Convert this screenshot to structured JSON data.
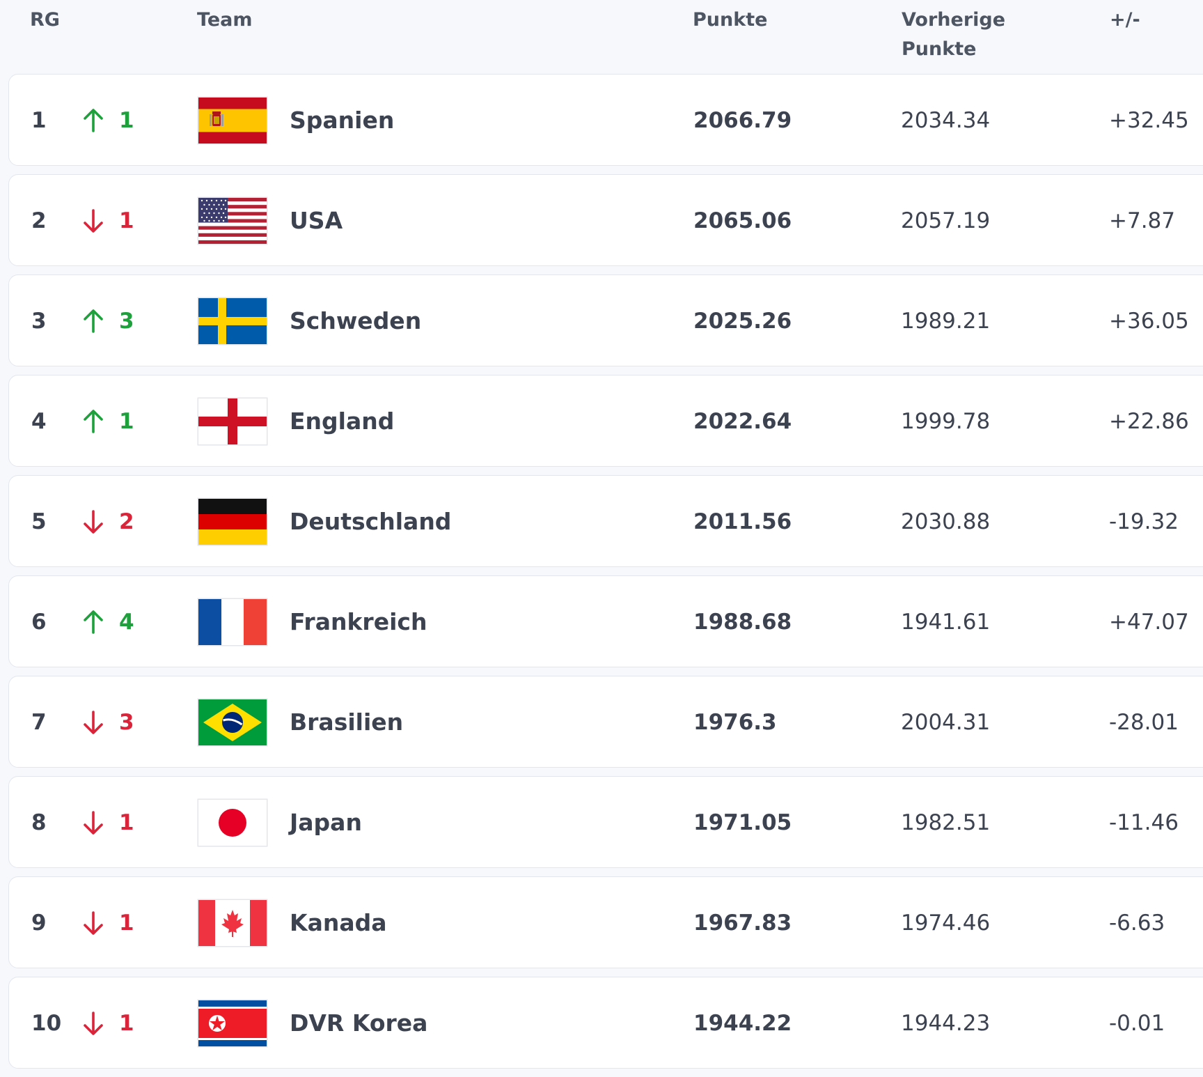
{
  "header": {
    "rank": "RG",
    "team": "Team",
    "points": "Punkte",
    "previous_line1": "Vorherige",
    "previous_line2": "Punkte",
    "diff": "+/-"
  },
  "colors": {
    "up": "#1ea03c",
    "down": "#d9243a"
  },
  "rows": [
    {
      "rank": "1",
      "dir": "up",
      "change": "1",
      "flag": "spain-flag-icon",
      "team": "Spanien",
      "points": "2066.79",
      "previous": "2034.34",
      "diff": "+32.45"
    },
    {
      "rank": "2",
      "dir": "down",
      "change": "1",
      "flag": "usa-flag-icon",
      "team": "USA",
      "points": "2065.06",
      "previous": "2057.19",
      "diff": "+7.87"
    },
    {
      "rank": "3",
      "dir": "up",
      "change": "3",
      "flag": "sweden-flag-icon",
      "team": "Schweden",
      "points": "2025.26",
      "previous": "1989.21",
      "diff": "+36.05"
    },
    {
      "rank": "4",
      "dir": "up",
      "change": "1",
      "flag": "england-flag-icon",
      "team": "England",
      "points": "2022.64",
      "previous": "1999.78",
      "diff": "+22.86"
    },
    {
      "rank": "5",
      "dir": "down",
      "change": "2",
      "flag": "germany-flag-icon",
      "team": "Deutschland",
      "points": "2011.56",
      "previous": "2030.88",
      "diff": "-19.32"
    },
    {
      "rank": "6",
      "dir": "up",
      "change": "4",
      "flag": "france-flag-icon",
      "team": "Frankreich",
      "points": "1988.68",
      "previous": "1941.61",
      "diff": "+47.07"
    },
    {
      "rank": "7",
      "dir": "down",
      "change": "3",
      "flag": "brazil-flag-icon",
      "team": "Brasilien",
      "points": "1976.3",
      "previous": "2004.31",
      "diff": "-28.01"
    },
    {
      "rank": "8",
      "dir": "down",
      "change": "1",
      "flag": "japan-flag-icon",
      "team": "Japan",
      "points": "1971.05",
      "previous": "1982.51",
      "diff": "-11.46"
    },
    {
      "rank": "9",
      "dir": "down",
      "change": "1",
      "flag": "canada-flag-icon",
      "team": "Kanada",
      "points": "1967.83",
      "previous": "1974.46",
      "diff": "-6.63"
    },
    {
      "rank": "10",
      "dir": "down",
      "change": "1",
      "flag": "dpr-korea-flag-icon",
      "team": "DVR Korea",
      "points": "1944.22",
      "previous": "1944.23",
      "diff": "-0.01"
    }
  ]
}
